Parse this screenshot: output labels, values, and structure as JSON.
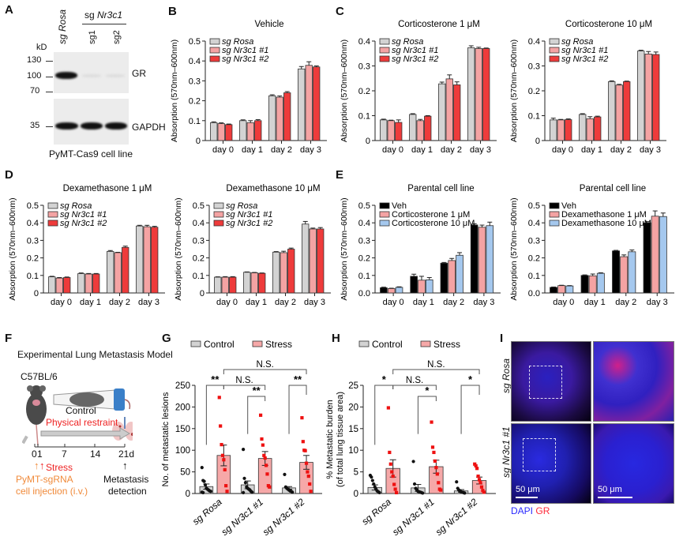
{
  "panel_letters": {
    "A": "A",
    "B": "B",
    "C": "C",
    "D": "D",
    "E": "E",
    "F": "F",
    "G": "G",
    "H": "H",
    "I": "I"
  },
  "western_blot": {
    "lanes": [
      "sg Rosa",
      "sg1",
      "sg2"
    ],
    "group_label_prefix": "sg ",
    "group_label_gene": "Nr3c1",
    "kd_label": "kD",
    "markers": [
      "130",
      "100",
      "70",
      "35"
    ],
    "bands": [
      "GR",
      "GAPDH"
    ],
    "caption": "PyMT-Cas9 cell line"
  },
  "colors": {
    "sgRosa": "#d3d3d3",
    "sgNr3c1_1": "#f4a3a3",
    "sgNr3c1_2": "#ee3b3b",
    "veh": "#000000",
    "dose1": "#f4a3a3",
    "dose10": "#a5c8ee",
    "control": "#d3d3d3",
    "stress": "#f6a8a8",
    "stress_dot": "#ee1111",
    "dapi": "#2a2aff",
    "gr": "#ff2a3a"
  },
  "schematic": {
    "title": "Experimental Lung Metastasis Model",
    "strain": "C57BL/6",
    "control_label": "Control",
    "stress_label": "Physical restraint",
    "timeline_ticks": [
      "0",
      "1",
      "7",
      "14",
      "21d"
    ],
    "stress_arrow_label": "Stress",
    "injection_label_line1": "PyMT-sgRNA",
    "injection_label_line2": "cell injection (i.v.)",
    "detection_label_line1": "Metastasis",
    "detection_label_line2": "detection"
  },
  "microscopy": {
    "row_labels": [
      "sg Rosa",
      "sg Nr3c1 #1"
    ],
    "scale_label": "50 μm",
    "legend_dapi": "DAPI",
    "legend_gr": "GR"
  },
  "chart_data": [
    {
      "id": "B",
      "type": "bar",
      "title": "Vehicle",
      "ylabel": "Absorption (570nm–600nm)",
      "xlabel": "",
      "categories": [
        "day 0",
        "day 1",
        "day 2",
        "day 3"
      ],
      "yticks": [
        "0",
        "0.1",
        "0.2",
        "0.3",
        "0.4",
        "0.5"
      ],
      "ylim": [
        0,
        0.5
      ],
      "legend": "top-left",
      "series": [
        {
          "name": "sg Rosa",
          "color_key": "sgRosa",
          "values": [
            0.09,
            0.1,
            0.225,
            0.36
          ],
          "err": [
            0.004,
            0.004,
            0.005,
            0.012
          ]
        },
        {
          "name": "sg Nr3c1 #1",
          "color_key": "sgNr3c1_1",
          "values": [
            0.085,
            0.09,
            0.218,
            0.378
          ],
          "err": [
            0.004,
            0.01,
            0.006,
            0.018
          ]
        },
        {
          "name": "sg Nr3c1 #2",
          "color_key": "sgNr3c1_2",
          "values": [
            0.08,
            0.1,
            0.24,
            0.37
          ],
          "err": [
            0.003,
            0.005,
            0.006,
            0.005
          ]
        }
      ]
    },
    {
      "id": "C1",
      "type": "bar",
      "title": "Corticosterone 1 μM",
      "ylabel": "Absorption (570nm–600nm)",
      "categories": [
        "day 0",
        "day 1",
        "day 2",
        "day 3"
      ],
      "yticks": [
        "0",
        "0.1",
        "0.2",
        "0.3",
        "0.4"
      ],
      "ylim": [
        0,
        0.4
      ],
      "legend": "top-left",
      "series": [
        {
          "name": "sg Rosa",
          "color_key": "sgRosa",
          "values": [
            0.083,
            0.105,
            0.228,
            0.373
          ],
          "err": [
            0.003,
            0.003,
            0.007,
            0.008
          ]
        },
        {
          "name": "sg Nr3c1 #1",
          "color_key": "sgNr3c1_1",
          "values": [
            0.08,
            0.08,
            0.248,
            0.37
          ],
          "err": [
            0.002,
            0.005,
            0.016,
            0.005
          ]
        },
        {
          "name": "sg Nr3c1 #2",
          "color_key": "sgNr3c1_2",
          "values": [
            0.073,
            0.098,
            0.224,
            0.37
          ],
          "err": [
            0.01,
            0.002,
            0.012,
            0.002
          ]
        }
      ]
    },
    {
      "id": "C10",
      "type": "bar",
      "title": "Corticosterone 10 μM",
      "ylabel": "Absorption (570nm–600nm)",
      "categories": [
        "day 0",
        "day 1",
        "day 2",
        "day 3"
      ],
      "yticks": [
        "0",
        "0.1",
        "0.2",
        "0.3",
        "0.4"
      ],
      "ylim": [
        0,
        0.4
      ],
      "legend": "top-left",
      "series": [
        {
          "name": "sg Rosa",
          "color_key": "sgRosa",
          "values": [
            0.083,
            0.105,
            0.237,
            0.36
          ],
          "err": [
            0.007,
            0.003,
            0.003,
            0.003
          ]
        },
        {
          "name": "sg Nr3c1 #1",
          "color_key": "sgNr3c1_1",
          "values": [
            0.083,
            0.088,
            0.223,
            0.348
          ],
          "err": [
            0.002,
            0.008,
            0.003,
            0.01
          ]
        },
        {
          "name": "sg Nr3c1 #2",
          "color_key": "sgNr3c1_2",
          "values": [
            0.084,
            0.095,
            0.237,
            0.346
          ],
          "err": [
            0.003,
            0.003,
            0.002,
            0.01
          ]
        }
      ]
    },
    {
      "id": "D1",
      "type": "bar",
      "title": "Dexamethasone 1 μM",
      "ylabel": "Absorption (570nm–600nm)",
      "categories": [
        "day 0",
        "day 1",
        "day 2",
        "day 3"
      ],
      "yticks": [
        "0",
        "0.1",
        "0.2",
        "0.3",
        "0.4",
        "0.5"
      ],
      "ylim": [
        0,
        0.5
      ],
      "legend": "top-left",
      "series": [
        {
          "name": "sg Rosa",
          "color_key": "sgRosa",
          "values": [
            0.092,
            0.11,
            0.237,
            0.382
          ],
          "err": [
            0.003,
            0.004,
            0.005,
            0.004
          ]
        },
        {
          "name": "sg Nr3c1 #1",
          "color_key": "sgNr3c1_1",
          "values": [
            0.085,
            0.108,
            0.23,
            0.378
          ],
          "err": [
            0.003,
            0.003,
            0.002,
            0.008
          ]
        },
        {
          "name": "sg Nr3c1 #2",
          "color_key": "sgNr3c1_2",
          "values": [
            0.088,
            0.108,
            0.26,
            0.375
          ],
          "err": [
            0.003,
            0.003,
            0.007,
            0.005
          ]
        }
      ]
    },
    {
      "id": "D10",
      "type": "bar",
      "title": "Dexamethasone 10 μM",
      "ylabel": "Absorption (570nm–600nm)",
      "categories": [
        "day 0",
        "day 1",
        "day 2",
        "day 3"
      ],
      "yticks": [
        "0",
        "0.1",
        "0.2",
        "0.3",
        "0.4",
        "0.5"
      ],
      "ylim": [
        0,
        0.5
      ],
      "legend": "top-left",
      "series": [
        {
          "name": "sg Rosa",
          "color_key": "sgRosa",
          "values": [
            0.09,
            0.118,
            0.233,
            0.393
          ],
          "err": [
            0.002,
            0.002,
            0.003,
            0.015
          ]
        },
        {
          "name": "sg Nr3c1 #1",
          "color_key": "sgNr3c1_1",
          "values": [
            0.09,
            0.115,
            0.23,
            0.365
          ],
          "err": [
            0.003,
            0.002,
            0.008,
            0.005
          ]
        },
        {
          "name": "sg Nr3c1 #2",
          "color_key": "sgNr3c1_2",
          "values": [
            0.09,
            0.112,
            0.25,
            0.365
          ],
          "err": [
            0.003,
            0.002,
            0.006,
            0.008
          ]
        }
      ]
    },
    {
      "id": "E_cort",
      "type": "bar",
      "title": "Parental cell line",
      "ylabel": "Absorption (570nm–600nm)",
      "categories": [
        "day 0",
        "day 1",
        "day 2",
        "day 3"
      ],
      "yticks": [
        "0.0",
        "0.1",
        "0.2",
        "0.3",
        "0.4",
        "0.5"
      ],
      "ylim": [
        0,
        0.5
      ],
      "legend": "top-left",
      "series": [
        {
          "name": "Veh",
          "color_key": "veh",
          "values": [
            0.03,
            0.095,
            0.17,
            0.388
          ],
          "err": [
            0.003,
            0.012,
            0.004,
            0.007
          ]
        },
        {
          "name": "Corticosterone 1 μM",
          "color_key": "dose1",
          "values": [
            0.025,
            0.073,
            0.185,
            0.375
          ],
          "err": [
            0.002,
            0.022,
            0.012,
            0.012
          ]
        },
        {
          "name": "Corticosterone 10 μM",
          "color_key": "dose10",
          "values": [
            0.032,
            0.075,
            0.215,
            0.384
          ],
          "err": [
            0.003,
            0.013,
            0.015,
            0.02
          ]
        }
      ]
    },
    {
      "id": "E_dex",
      "type": "bar",
      "title": "Parental cell line",
      "ylabel": "Absorption (570nm–600nm)",
      "categories": [
        "day 0",
        "day 1",
        "day 2",
        "day 3"
      ],
      "yticks": [
        "0.0",
        "0.1",
        "0.2",
        "0.3",
        "0.4",
        "0.5"
      ],
      "ylim": [
        0,
        0.5
      ],
      "legend": "top-left",
      "series": [
        {
          "name": "Veh",
          "color_key": "veh",
          "values": [
            0.032,
            0.1,
            0.24,
            0.4
          ],
          "err": [
            0.002,
            0.003,
            0.003,
            0.007
          ]
        },
        {
          "name": "Dexamethasone 1 μM",
          "color_key": "dose1",
          "values": [
            0.042,
            0.098,
            0.207,
            0.438
          ],
          "err": [
            0.002,
            0.01,
            0.01,
            0.03
          ]
        },
        {
          "name": "Dexamethasone 10 μM",
          "color_key": "dose10",
          "values": [
            0.04,
            0.112,
            0.235,
            0.436
          ],
          "err": [
            0.002,
            0.003,
            0.01,
            0.02
          ]
        }
      ]
    },
    {
      "id": "G",
      "type": "bar",
      "title": "",
      "ylabel": "No. of metastatic lesions",
      "categories": [
        "sg Rosa",
        "sg Nr3c1 #1",
        "sg Nr3c1 #2"
      ],
      "yticks": [
        "0",
        "50",
        "100",
        "150",
        "200",
        "250"
      ],
      "ylim": [
        0,
        250
      ],
      "legend": "top",
      "legend_labels": [
        "Control",
        "Stress"
      ],
      "series": [
        {
          "name": "Control",
          "color_key": "control",
          "values": [
            16,
            20,
            13
          ],
          "err": [
            6,
            9,
            3
          ],
          "points": [
            [
              60,
              30,
              28,
              20,
              12,
              10,
              8,
              6,
              5,
              3,
              2
            ],
            [
              102,
              35,
              25,
              15,
              12,
              10,
              8,
              5,
              3,
              2
            ],
            [
              44,
              15,
              12,
              10,
              8,
              6,
              5,
              3
            ]
          ]
        },
        {
          "name": "Stress",
          "color_key": "stress",
          "values": [
            88,
            81,
            72
          ],
          "err": [
            24,
            16,
            16
          ],
          "points": [
            [
              222,
              156,
              113,
              88,
              78,
              55,
              18,
              5
            ],
            [
              181,
              126,
              112,
              88,
              82,
              65,
              45,
              18,
              15
            ],
            [
              175,
              120,
              100,
              99,
              70,
              50,
              40,
              22,
              5
            ]
          ]
        }
      ],
      "significance": [
        {
          "label": "**",
          "pair": "sg Rosa control vs stress"
        },
        {
          "label": "**",
          "pair": "sg Nr3c1 #1 control vs stress"
        },
        {
          "label": "**",
          "pair": "sg Nr3c1 #2 control vs stress"
        },
        {
          "label": "N.S.",
          "pair": "sg Rosa stress vs sg Nr3c1 #1 stress"
        },
        {
          "label": "N.S.",
          "pair": "sg Rosa stress vs sg Nr3c1 #2 stress"
        }
      ]
    },
    {
      "id": "H",
      "type": "bar",
      "title": "",
      "ylabel": "% Metastatic burden",
      "ylabel2": "(of total lung tissue area)",
      "categories": [
        "sg Rosa",
        "sg Nr3c1 #1",
        "sg Nr3c1 #2"
      ],
      "yticks": [
        "0",
        "5",
        "10",
        "15",
        "20",
        "25"
      ],
      "ylim": [
        0,
        25
      ],
      "legend": "top",
      "legend_labels": [
        "Control",
        "Stress"
      ],
      "series": [
        {
          "name": "Control",
          "color_key": "control",
          "values": [
            1.4,
            1.3,
            0.6
          ],
          "err": [
            0.6,
            0.8,
            0.3
          ],
          "points": [
            [
              4.2,
              3.8,
              3.0,
              2.2,
              1.5,
              1.0,
              0.6,
              0.4,
              0.2
            ],
            [
              7.4,
              2.2,
              1.2,
              0.8,
              0.5,
              0.4,
              0.3,
              0.2,
              0.1
            ],
            [
              2.7,
              1.2,
              0.8,
              0.5,
              0.4,
              0.3,
              0.2,
              0.1
            ]
          ]
        },
        {
          "name": "Stress",
          "color_key": "stress",
          "values": [
            5.8,
            6.2,
            3.0
          ],
          "err": [
            2.0,
            1.5,
            0.8
          ],
          "points": [
            [
              19.8,
              9.5,
              6.8,
              5.0,
              4.0,
              2.1,
              1.0,
              0.2
            ],
            [
              16.5,
              10.7,
              9.5,
              7.5,
              6.0,
              4.5,
              2.5,
              1.0,
              0.8
            ],
            [
              6.8,
              6.4,
              5.8,
              4.0,
              3.2,
              2.5,
              1.5,
              0.7,
              0.3
            ]
          ]
        }
      ],
      "significance": [
        {
          "label": "*",
          "pair": "sg Rosa control vs stress"
        },
        {
          "label": "*",
          "pair": "sg Nr3c1 #1 control vs stress"
        },
        {
          "label": "*",
          "pair": "sg Nr3c1 #2 control vs stress"
        },
        {
          "label": "N.S.",
          "pair": "sg Rosa stress vs sg Nr3c1 #1 stress"
        },
        {
          "label": "N.S.",
          "pair": "sg Rosa stress vs sg Nr3c1 #2 stress"
        }
      ]
    }
  ]
}
